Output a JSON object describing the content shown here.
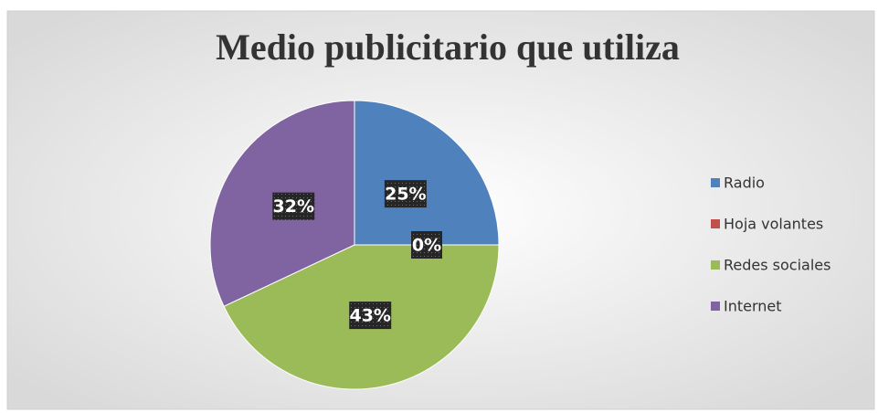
{
  "chart_data": {
    "type": "pie",
    "title": "Medio publicitario que utiliza",
    "categories": [
      "Radio",
      "Hoja volantes",
      "Redes sociales",
      "Internet"
    ],
    "values": [
      25,
      0,
      43,
      32
    ],
    "value_labels": [
      "25%",
      "0%",
      "43%",
      "32%"
    ],
    "colors": [
      "#4f81bd",
      "#c0504d",
      "#9bbb59",
      "#8064a2"
    ],
    "legend": "right"
  }
}
